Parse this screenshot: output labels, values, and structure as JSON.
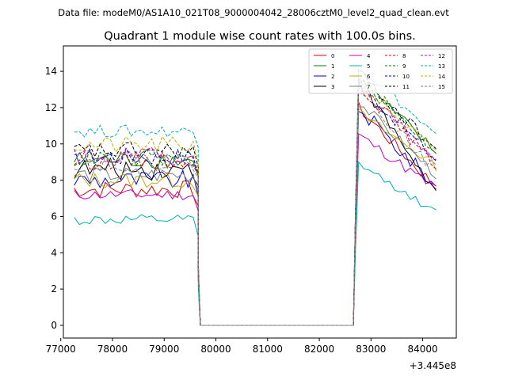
{
  "header": {
    "data_file_text": "Data file: modeM0/AS1A10_021T08_9000004042_28006cztM0_level2_quad_clean.evt"
  },
  "chart_data": {
    "type": "line",
    "title": "Quadrant 1 module wise count rates with 100.0s bins.",
    "xlabel": "",
    "ylabel": "",
    "x_offset_text": "+3.445e8",
    "xlim": [
      77050,
      84650
    ],
    "ylim": [
      -0.7,
      15.4
    ],
    "x_ticks": [
      77000,
      78000,
      79000,
      80000,
      81000,
      82000,
      83000,
      84000
    ],
    "x_tick_labels": [
      "77000",
      "78000",
      "79000",
      "80000",
      "81000",
      "82000",
      "83000",
      "84000"
    ],
    "y_ticks": [
      0,
      2,
      4,
      6,
      8,
      10,
      12,
      14
    ],
    "y_tick_labels": [
      "0",
      "2",
      "4",
      "6",
      "8",
      "10",
      "12",
      "14"
    ],
    "legend_position": "top-right",
    "legend_columns": 4,
    "segments": {
      "first": {
        "start": 77260,
        "step": 100,
        "count": 25
      },
      "gap_fall": [
        79660,
        79700
      ],
      "flat_end": 82660,
      "second": {
        "start": 82660,
        "step": 100,
        "count": 17
      }
    },
    "series": [
      {
        "name": "0",
        "color": "#e00000",
        "dash": "solid",
        "base1": 7.5,
        "noise1": 0.5,
        "peak": 12.0,
        "end": 7.6,
        "noise2": 0.35
      },
      {
        "name": "1",
        "color": "#008000",
        "dash": "solid",
        "base1": 9.1,
        "noise1": 0.5,
        "peak": 13.6,
        "end": 9.5,
        "noise2": 0.35
      },
      {
        "name": "2",
        "color": "#0000e0",
        "dash": "solid",
        "base1": 8.0,
        "noise1": 0.55,
        "peak": 12.0,
        "end": 7.6,
        "noise2": 0.45
      },
      {
        "name": "3",
        "color": "#000000",
        "dash": "solid",
        "base1": 8.6,
        "noise1": 0.6,
        "peak": 13.5,
        "end": 7.3,
        "noise2": 0.35
      },
      {
        "name": "4",
        "color": "#c000c0",
        "dash": "solid",
        "base1": 7.2,
        "noise1": 0.3,
        "peak": 10.5,
        "end": 7.5,
        "noise2": 0.3
      },
      {
        "name": "5",
        "color": "#00b0b0",
        "dash": "solid",
        "base1": 5.8,
        "noise1": 0.3,
        "peak": 8.9,
        "end": 6.2,
        "noise2": 0.2
      },
      {
        "name": "6",
        "color": "#c0b000",
        "dash": "solid",
        "base1": 8.0,
        "noise1": 0.45,
        "peak": 11.7,
        "end": 8.8,
        "noise2": 0.3
      },
      {
        "name": "7",
        "color": "#808080",
        "dash": "solid",
        "base1": 8.3,
        "noise1": 0.45,
        "peak": 12.3,
        "end": 8.3,
        "noise2": 0.3
      },
      {
        "name": "8",
        "color": "#e00000",
        "dash": "dashed",
        "base1": 9.1,
        "noise1": 0.5,
        "peak": 13.3,
        "end": 8.8,
        "noise2": 0.35
      },
      {
        "name": "9",
        "color": "#008000",
        "dash": "dashed",
        "base1": 9.2,
        "noise1": 0.5,
        "peak": 13.6,
        "end": 9.6,
        "noise2": 0.35
      },
      {
        "name": "10",
        "color": "#0000e0",
        "dash": "dashed",
        "base1": 9.3,
        "noise1": 0.5,
        "peak": 13.3,
        "end": 9.1,
        "noise2": 0.35
      },
      {
        "name": "11",
        "color": "#000000",
        "dash": "dashed",
        "base1": 9.6,
        "noise1": 0.5,
        "peak": 13.9,
        "end": 9.7,
        "noise2": 0.35
      },
      {
        "name": "12",
        "color": "#c000c0",
        "dash": "dashed",
        "base1": 9.3,
        "noise1": 0.5,
        "peak": 13.4,
        "end": 9.0,
        "noise2": 0.35
      },
      {
        "name": "13",
        "color": "#00b0b0",
        "dash": "dashed",
        "base1": 10.7,
        "noise1": 0.35,
        "peak": 14.4,
        "end": 10.4,
        "noise2": 0.3
      },
      {
        "name": "14",
        "color": "#c0b000",
        "dash": "dashed",
        "base1": 9.9,
        "noise1": 0.5,
        "peak": 13.5,
        "end": 9.4,
        "noise2": 0.35
      },
      {
        "name": "15",
        "color": "#808080",
        "dash": "dashed",
        "base1": 9.0,
        "noise1": 0.5,
        "peak": 13.0,
        "end": 8.5,
        "noise2": 0.35
      }
    ]
  }
}
